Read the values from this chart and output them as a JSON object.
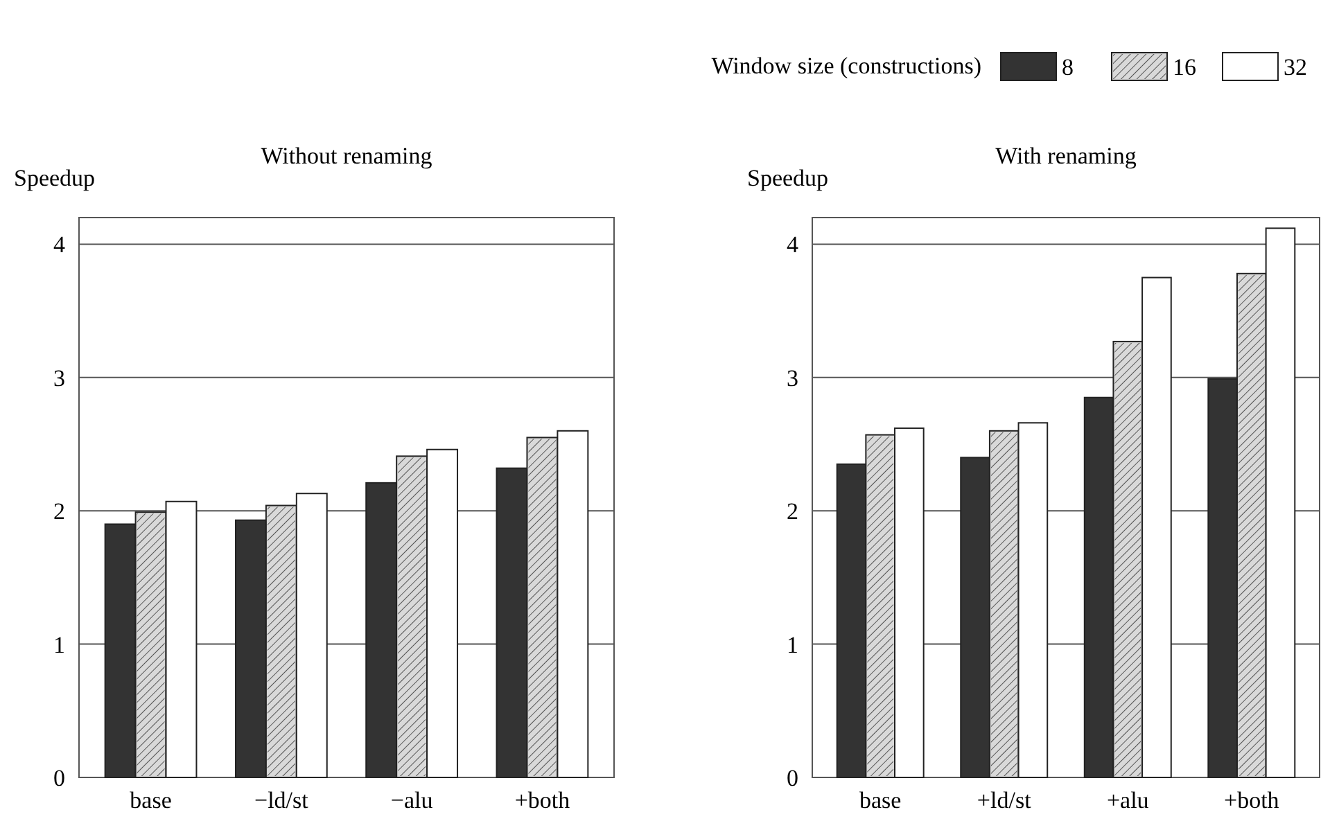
{
  "chart_data": [
    {
      "type": "bar",
      "title": "Without renaming",
      "ylabel": "Speedup",
      "categories": [
        "base",
        "−ld/st",
        "−alu",
        "+both"
      ],
      "ylim": [
        0,
        4.2
      ],
      "yticks": [
        0,
        1,
        2,
        3,
        4
      ],
      "grid": "y",
      "legend": false,
      "series": [
        {
          "color": "#333333",
          "values": [
            1.9,
            1.93,
            2.21,
            2.32
          ]
        },
        {
          "color": "#d9d9d9",
          "values": [
            1.99,
            2.04,
            2.41,
            2.55
          ]
        },
        {
          "color": "#ffffff",
          "values": [
            2.07,
            2.13,
            2.46,
            2.6
          ]
        }
      ]
    },
    {
      "type": "bar",
      "title": "With renaming",
      "ylabel": "Speedup",
      "categories": [
        "base",
        "+ld/st",
        "+alu",
        "+both"
      ],
      "ylim": [
        0,
        4.2
      ],
      "yticks": [
        0,
        1,
        2,
        3,
        4
      ],
      "grid": "y",
      "legend": "top right",
      "legend_title": "Window size (constructions)",
      "series": [
        {
          "name": "8",
          "color": "#333333",
          "values": [
            2.35,
            2.4,
            2.85,
            2.99
          ]
        },
        {
          "name": "16",
          "color": "#d9d9d9",
          "values": [
            2.57,
            2.6,
            3.27,
            3.78
          ]
        },
        {
          "name": "32",
          "color": "#ffffff",
          "values": [
            2.62,
            2.66,
            3.75,
            4.12
          ]
        }
      ]
    }
  ]
}
